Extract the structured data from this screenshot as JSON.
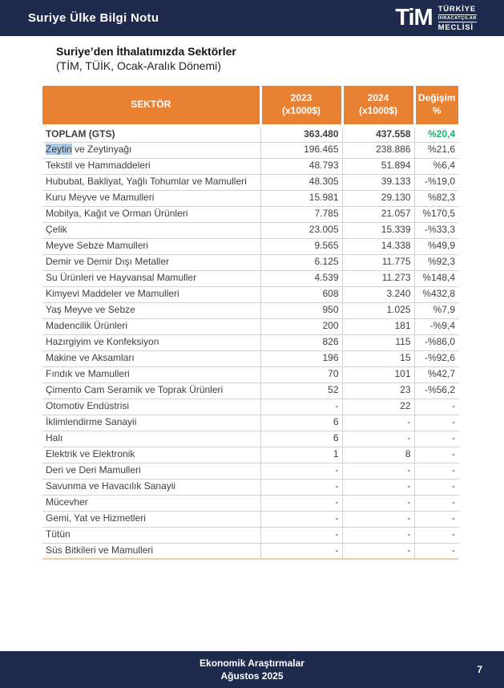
{
  "header": {
    "title": "Suriye Ülke Bilgi Notu",
    "logo": {
      "mark": "TiM",
      "line1": "TÜRKİYE",
      "line2": "İHRACATÇILAR",
      "line3": "MECLİSİ"
    }
  },
  "doc": {
    "title": "Suriye’den İthalatımızda Sektörler",
    "subtitle": "(TİM, TÜİK, Ocak-Aralık Dönemi)"
  },
  "colors": {
    "navy": "#1E2B4D",
    "orange": "#E98133",
    "border": "#F3C9A5",
    "green": "#1CB26B",
    "red": "#E9332B",
    "highlight": "#A9C7E6"
  },
  "table": {
    "columns": [
      {
        "label": "SEKTÖR",
        "sub": ""
      },
      {
        "label": "2023",
        "sub": "(x1000$)"
      },
      {
        "label": "2024",
        "sub": "(x1000$)"
      },
      {
        "label": "Değişim",
        "sub": "%"
      }
    ],
    "rows": [
      {
        "sector": "TOPLAM (GTS)",
        "y2023": "363.480",
        "y2024": "437.558",
        "change": "%20,4",
        "trend": "up",
        "bold": true
      },
      {
        "sector": "Zeytin ve Zeytinyağı",
        "highlight_word": "Zeytin",
        "sector_rest": " ve Zeytinyağı",
        "y2023": "196.465",
        "y2024": "238.886",
        "change": "%21,6",
        "trend": "up",
        "bold": false
      },
      {
        "sector": "Tekstil ve Hammaddeleri",
        "y2023": "48.793",
        "y2024": "51.894",
        "change": "%6,4",
        "trend": "up",
        "bold": false
      },
      {
        "sector": "Hububat, Bakliyat, Yağlı Tohumlar ve Mamulleri",
        "y2023": "48.305",
        "y2024": "39.133",
        "change": "-%19,0",
        "trend": "down",
        "bold": false
      },
      {
        "sector": "Kuru Meyve ve Mamulleri",
        "y2023": "15.981",
        "y2024": "29.130",
        "change": "%82,3",
        "trend": "up",
        "bold": false
      },
      {
        "sector": "Mobilya, Kağıt ve Orman Ürünleri",
        "y2023": "7.785",
        "y2024": "21.057",
        "change": "%170,5",
        "trend": "up",
        "bold": false
      },
      {
        "sector": "Çelik",
        "y2023": "23.005",
        "y2024": "15.339",
        "change": "-%33,3",
        "trend": "down",
        "bold": false
      },
      {
        "sector": "Meyve Sebze Mamulleri",
        "y2023": "9.565",
        "y2024": "14.338",
        "change": "%49,9",
        "trend": "up",
        "bold": false
      },
      {
        "sector": "Demir ve Demir Dışı Metaller",
        "y2023": "6.125",
        "y2024": "11.775",
        "change": "%92,3",
        "trend": "up",
        "bold": false
      },
      {
        "sector": "Su Ürünleri ve Hayvansal Mamuller",
        "y2023": "4.539",
        "y2024": "11.273",
        "change": "%148,4",
        "trend": "up",
        "bold": false
      },
      {
        "sector": "Kimyevi Maddeler ve Mamulleri",
        "y2023": "608",
        "y2024": "3.240",
        "change": "%432,8",
        "trend": "up",
        "bold": false
      },
      {
        "sector": "Yaş Meyve ve Sebze",
        "y2023": "950",
        "y2024": "1.025",
        "change": "%7,9",
        "trend": "up",
        "bold": false
      },
      {
        "sector": "Madencilik Ürünleri",
        "y2023": "200",
        "y2024": "181",
        "change": "-%9,4",
        "trend": "down",
        "bold": false
      },
      {
        "sector": "Hazırgiyim ve Konfeksiyon",
        "y2023": "826",
        "y2024": "115",
        "change": "-%86,0",
        "trend": "down",
        "bold": false
      },
      {
        "sector": "Makine ve Aksamları",
        "y2023": "196",
        "y2024": "15",
        "change": "-%92,6",
        "trend": "down",
        "bold": false
      },
      {
        "sector": "Fındık ve Mamulleri",
        "y2023": "70",
        "y2024": "101",
        "change": "%42,7",
        "trend": "up",
        "bold": false
      },
      {
        "sector": "Çimento Cam Seramik ve Toprak Ürünleri",
        "y2023": "52",
        "y2024": "23",
        "change": "-%56,2",
        "trend": "down",
        "bold": false
      },
      {
        "sector": "Otomotiv Endüstrisi",
        "y2023": "-",
        "y2024": "22",
        "change": "-",
        "trend": "none",
        "bold": false
      },
      {
        "sector": "İklimlendirme Sanayii",
        "y2023": "6",
        "y2024": "-",
        "change": "-",
        "trend": "none",
        "bold": false
      },
      {
        "sector": "Halı",
        "y2023": "6",
        "y2024": "-",
        "change": "-",
        "trend": "none",
        "bold": false
      },
      {
        "sector": "Elektrik ve Elektronik",
        "y2023": "1",
        "y2024": "8",
        "change": "-",
        "trend": "none",
        "bold": false
      },
      {
        "sector": "Deri ve Deri Mamulleri",
        "y2023": "-",
        "y2024": "-",
        "change": "-",
        "trend": "none",
        "bold": false
      },
      {
        "sector": "Savunma ve Havacılık Sanayii",
        "y2023": "-",
        "y2024": "-",
        "change": "-",
        "trend": "none",
        "bold": false
      },
      {
        "sector": "Mücevher",
        "y2023": "-",
        "y2024": "-",
        "change": "-",
        "trend": "none",
        "bold": false
      },
      {
        "sector": "Gemi, Yat ve Hizmetleri",
        "y2023": "-",
        "y2024": "-",
        "change": "-",
        "trend": "none",
        "bold": false
      },
      {
        "sector": "Tütün",
        "y2023": "-",
        "y2024": "-",
        "change": "-",
        "trend": "none",
        "bold": false
      },
      {
        "sector": "Süs Bitkileri ve Mamulleri",
        "y2023": "-",
        "y2024": "-",
        "change": "-",
        "trend": "none",
        "bold": false
      }
    ]
  },
  "footer": {
    "line1": "Ekonomik Araştırmalar",
    "line2": "Ağustos 2025",
    "page_number": "7"
  }
}
